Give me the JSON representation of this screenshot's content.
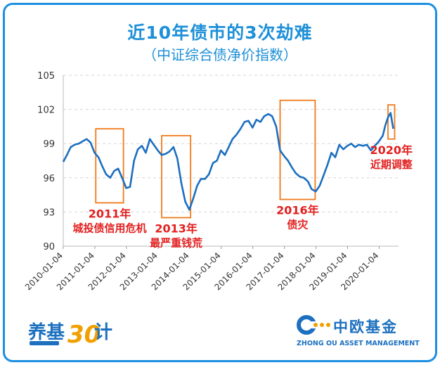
{
  "title": "近10年债市的3次劫难",
  "subtitle": "（中证综合债净价指数）",
  "chart_data": {
    "type": "line",
    "title": "近10年债市的3次劫难",
    "subtitle": "（中证综合债净价指数）",
    "ylim": [
      90,
      105
    ],
    "y_ticks": [
      "105",
      "102",
      "99",
      "96",
      "93",
      "90"
    ],
    "x_ticks": [
      "2010-01-04",
      "2011-01-04",
      "2012-01-04",
      "2013-01-04",
      "2014-01-04",
      "2015-01-04",
      "2016-01-04",
      "2017-01-04",
      "2018-01-04",
      "2019-01-04",
      "2020-01-04"
    ],
    "grid": "horizontal-dashed",
    "line_color": "#1c6fc0",
    "series": [
      {
        "x": [
          "2010-01-04",
          "2010-02-15",
          "2010-04-01",
          "2010-05-15",
          "2010-07-01",
          "2010-08-15",
          "2010-10-01",
          "2010-11-15",
          "2011-01-01",
          "2011-02-15",
          "2011-04-01",
          "2011-05-15",
          "2011-07-01",
          "2011-08-15",
          "2011-10-01",
          "2011-11-15",
          "2012-01-01",
          "2012-02-15",
          "2012-04-01",
          "2012-05-15",
          "2012-07-01",
          "2012-08-15",
          "2012-10-01",
          "2012-11-15",
          "2013-01-01",
          "2013-02-15",
          "2013-04-01",
          "2013-05-15",
          "2013-07-01",
          "2013-08-15",
          "2013-10-01",
          "2013-11-15",
          "2014-01-01",
          "2014-02-15",
          "2014-04-01",
          "2014-05-15",
          "2014-07-01",
          "2014-08-15",
          "2014-10-01",
          "2014-11-15",
          "2015-01-01",
          "2015-02-15",
          "2015-04-01",
          "2015-05-15",
          "2015-07-01",
          "2015-08-15",
          "2015-10-01",
          "2015-11-15",
          "2016-01-01",
          "2016-02-15",
          "2016-04-01",
          "2016-05-15",
          "2016-07-01",
          "2016-08-15",
          "2016-10-01",
          "2016-11-15",
          "2017-01-01",
          "2017-02-15",
          "2017-04-01",
          "2017-05-15",
          "2017-07-01",
          "2017-08-15",
          "2017-10-01",
          "2017-11-15",
          "2018-01-01",
          "2018-02-15",
          "2018-04-01",
          "2018-05-15",
          "2018-07-01",
          "2018-08-15",
          "2018-10-01",
          "2018-11-15",
          "2019-01-01",
          "2019-02-15",
          "2019-04-01",
          "2019-05-15",
          "2019-07-01",
          "2019-08-15",
          "2019-10-01",
          "2019-11-15",
          "2020-01-01",
          "2020-02-15",
          "2020-03-15",
          "2020-04-15",
          "2020-05-15",
          "2020-06-15"
        ],
        "values": [
          97.4,
          98.0,
          98.7,
          98.9,
          99.0,
          99.2,
          99.4,
          99.1,
          98.2,
          97.8,
          97.0,
          96.3,
          96.0,
          96.6,
          96.8,
          96.0,
          95.1,
          95.2,
          97.5,
          98.5,
          98.8,
          98.2,
          99.4,
          98.9,
          98.4,
          98.0,
          98.1,
          98.3,
          98.7,
          97.7,
          95.5,
          93.9,
          93.2,
          94.2,
          95.3,
          95.9,
          95.9,
          96.3,
          97.3,
          97.5,
          98.4,
          98.0,
          98.7,
          99.4,
          99.8,
          100.3,
          100.9,
          101.0,
          100.4,
          101.1,
          100.9,
          101.4,
          101.6,
          101.4,
          100.5,
          98.4,
          97.9,
          97.5,
          96.9,
          96.4,
          96.1,
          96.0,
          95.7,
          95.0,
          94.8,
          95.3,
          96.2,
          97.1,
          98.2,
          97.8,
          98.9,
          98.5,
          98.8,
          99.0,
          98.7,
          98.9,
          98.8,
          98.9,
          98.4,
          98.8,
          99.2,
          99.7,
          100.6,
          101.3,
          101.7,
          100.3
        ]
      }
    ],
    "annotations": [
      {
        "label": "2011年",
        "sublabel": "城投债信用危机",
        "x_start": "2011-01-15",
        "x_end": "2011-12-01",
        "y_range": [
          93.8,
          100.3
        ]
      },
      {
        "label": "2013年",
        "sublabel": "最严重钱荒",
        "x_start": "2013-02-15",
        "x_end": "2014-01-15",
        "y_range": [
          92.5,
          99.7
        ]
      },
      {
        "label": "2016年",
        "sublabel": "债灾",
        "x_start": "2016-11-15",
        "x_end": "2017-12-25",
        "y_range": [
          94.1,
          102.8
        ]
      },
      {
        "label": "2020年",
        "sublabel": "近期调整",
        "x_start": "2020-04-15",
        "x_end": "2020-07-01",
        "y_range": [
          99.4,
          102.4
        ]
      }
    ]
  },
  "footer": {
    "left_logo_text": "养基",
    "left_logo_number": "30",
    "left_logo_char": "计",
    "right_logo_cn": "中欧基金",
    "right_logo_en": "ZHONG OU ASSET MANAGEMENT",
    "brand_color": "#1c70bf"
  }
}
